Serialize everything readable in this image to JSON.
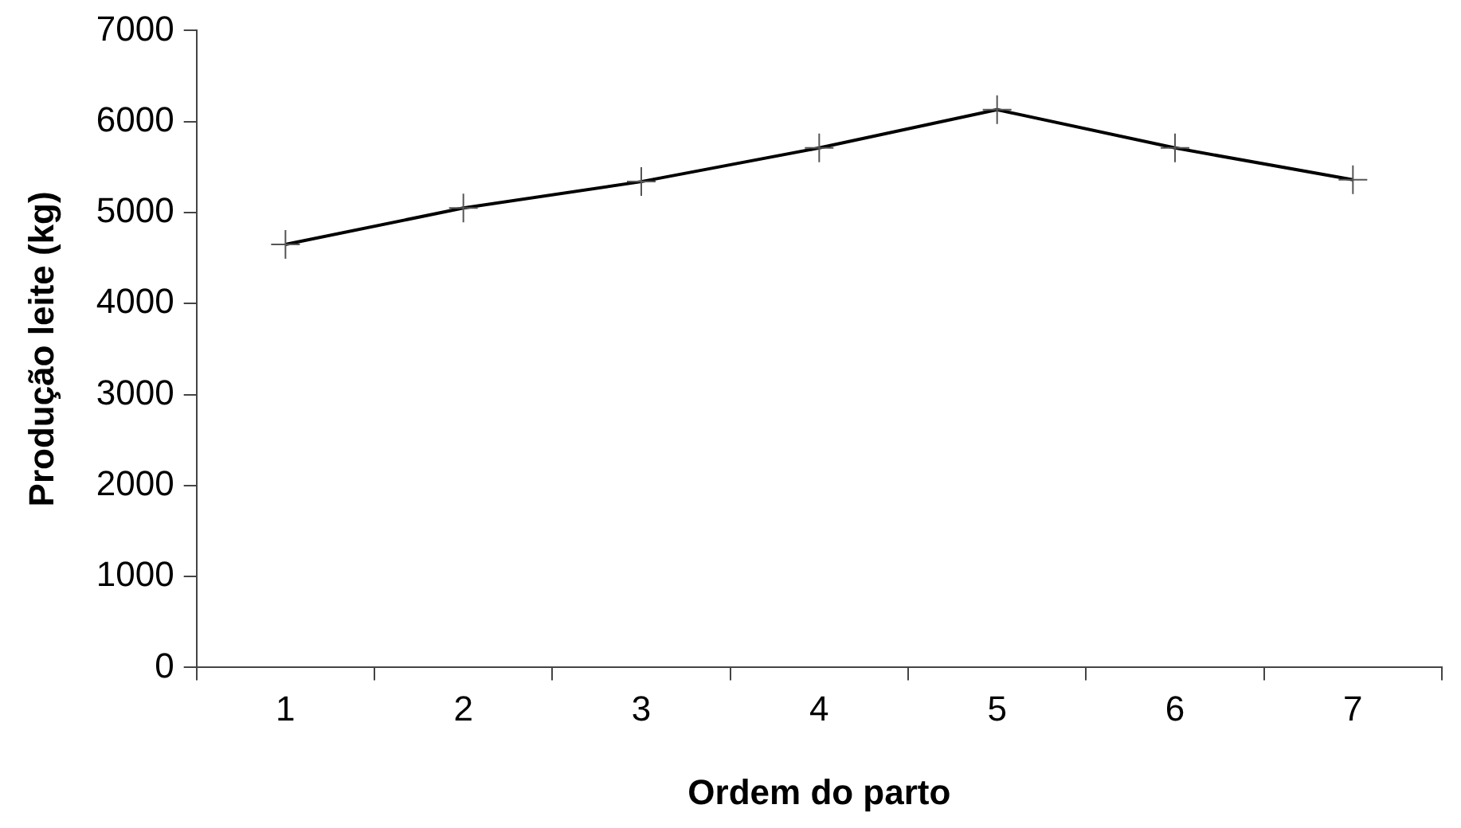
{
  "chart_data": {
    "type": "line",
    "xlabel": "Ordem do parto",
    "ylabel": "Produção leite (kg)",
    "categories": [
      "1",
      "2",
      "3",
      "4",
      "5",
      "6",
      "7"
    ],
    "series": [
      {
        "color": "#000000",
        "values": [
          4650,
          5050,
          5340,
          5710,
          6130,
          5710,
          5360
        ]
      }
    ],
    "ylim": [
      0,
      7000
    ],
    "yticks": [
      0,
      1000,
      2000,
      3000,
      4000,
      5000,
      6000,
      7000
    ],
    "grid": false,
    "legend": false,
    "marker": "cross",
    "line_style": "solid"
  }
}
